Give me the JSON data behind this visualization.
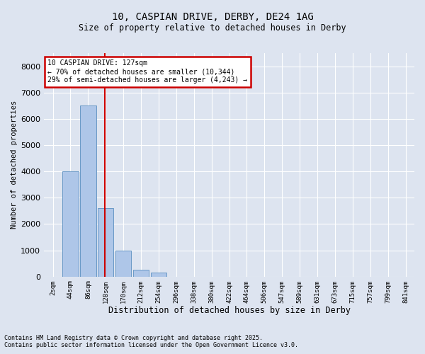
{
  "title_line1": "10, CASPIAN DRIVE, DERBY, DE24 1AG",
  "title_line2": "Size of property relative to detached houses in Derby",
  "xlabel": "Distribution of detached houses by size in Derby",
  "ylabel": "Number of detached properties",
  "bar_labels": [
    "2sqm",
    "44sqm",
    "86sqm",
    "128sqm",
    "170sqm",
    "212sqm",
    "254sqm",
    "296sqm",
    "338sqm",
    "380sqm",
    "422sqm",
    "464sqm",
    "506sqm",
    "547sqm",
    "589sqm",
    "631sqm",
    "673sqm",
    "715sqm",
    "757sqm",
    "799sqm",
    "841sqm"
  ],
  "bar_values": [
    0,
    4000,
    6500,
    2600,
    1000,
    250,
    150,
    0,
    0,
    0,
    0,
    0,
    0,
    0,
    0,
    0,
    0,
    0,
    0,
    0,
    0
  ],
  "bar_color": "#aec6e8",
  "bar_edge_color": "#5a8fc0",
  "vline_x": 2.95,
  "vline_color": "#cc0000",
  "ylim": [
    0,
    8500
  ],
  "yticks": [
    0,
    1000,
    2000,
    3000,
    4000,
    5000,
    6000,
    7000,
    8000
  ],
  "annotation_box_text": "10 CASPIAN DRIVE: 127sqm\n← 70% of detached houses are smaller (10,344)\n29% of semi-detached houses are larger (4,243) →",
  "annotation_box_color": "#cc0000",
  "bg_color": "#dde4f0",
  "plot_bg_color": "#dde4f0",
  "grid_color": "#ffffff",
  "footnote_line1": "Contains HM Land Registry data © Crown copyright and database right 2025.",
  "footnote_line2": "Contains public sector information licensed under the Open Government Licence v3.0."
}
